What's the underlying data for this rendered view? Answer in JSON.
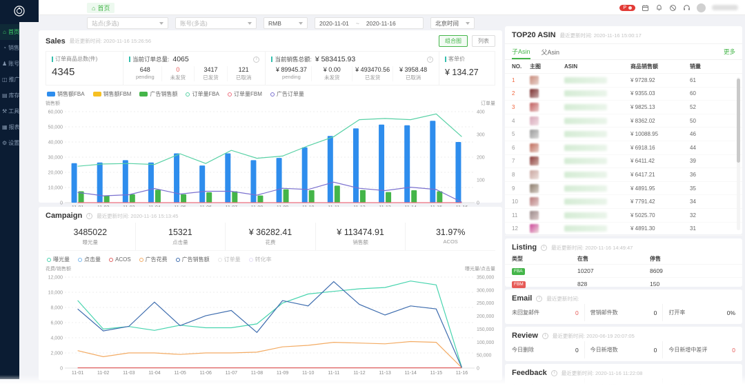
{
  "topbar": {
    "home_tab": "首页",
    "badge": "P"
  },
  "sidebar": {
    "items": [
      {
        "label": "首页",
        "icon": "⌂",
        "name": "home",
        "active": true
      },
      {
        "label": "销售",
        "icon": "◔",
        "name": "sales",
        "active": false
      },
      {
        "label": "账号",
        "icon": "♟",
        "name": "accounts",
        "active": false
      },
      {
        "label": "推广",
        "icon": "◫",
        "name": "advertising",
        "active": false
      },
      {
        "label": "库存",
        "icon": "▤",
        "name": "inventory",
        "active": false
      },
      {
        "label": "工具",
        "icon": "⚒",
        "name": "tools",
        "active": false
      },
      {
        "label": "报表",
        "icon": "▦",
        "name": "reports",
        "active": false
      },
      {
        "label": "设置",
        "icon": "⚙",
        "name": "settings",
        "active": false
      }
    ]
  },
  "filters": {
    "site_placeholder": "站点(多选)",
    "account_placeholder": "账号(多选)",
    "currency_value": "RMB",
    "date_start": "2020-11-01",
    "date_separator": "~",
    "date_end": "2020-11-16",
    "timezone_value": "北京时间"
  },
  "sales": {
    "title": "Sales",
    "updated_label": "最近更新时间:",
    "updated_time": "2020-11-16 15:26:56",
    "buttons": {
      "combo": "组合图",
      "list": "列表"
    },
    "kpi_items_label": "订单商品总数(件)",
    "kpi_items_value": "4345",
    "order_block": {
      "label": "当前订单总量:",
      "value": "4065",
      "cols": [
        {
          "value": "648",
          "label": "pending",
          "red": false
        },
        {
          "value": "0",
          "label": "未发货",
          "red": true
        },
        {
          "value": "3417",
          "label": "已发货",
          "red": false
        },
        {
          "value": "121",
          "label": "已取消",
          "red": false
        }
      ]
    },
    "amount_block": {
      "label": "当前销售总额:",
      "value": "¥ 583415.93",
      "cols": [
        {
          "value": "¥ 89945.37",
          "label": "pending",
          "red": false
        },
        {
          "value": "¥ 0.00",
          "label": "未发货",
          "red": false
        },
        {
          "value": "¥ 493470.56",
          "label": "已发货",
          "red": false
        },
        {
          "value": "¥ 3958.48",
          "label": "已取消",
          "red": false
        }
      ]
    },
    "avg_label": "客单价",
    "avg_value": "¥ 134.27",
    "axis_left_label": "销售额",
    "axis_right_label": "订单量",
    "chart_data": {
      "type": "bar+line",
      "categories": [
        "11-01",
        "11-02",
        "11-03",
        "11-04",
        "11-05",
        "11-06",
        "11-07",
        "11-08",
        "11-09",
        "11-10",
        "11-11",
        "11-12",
        "11-13",
        "11-14",
        "11-15",
        "11-16"
      ],
      "left_axis": {
        "max": 60000,
        "ticks": [
          0,
          10000,
          20000,
          30000,
          40000,
          50000,
          60000
        ]
      },
      "right_axis": {
        "max": 400,
        "ticks": [
          0,
          100,
          200,
          300,
          400
        ]
      },
      "series": [
        {
          "name": "销售额FBA",
          "type": "bar",
          "axis": "left",
          "color": "#2e8ded",
          "values": [
            26000,
            26500,
            28000,
            26500,
            32500,
            24500,
            32500,
            28000,
            29500,
            36500,
            44000,
            49000,
            51500,
            51000,
            54000,
            40000
          ]
        },
        {
          "name": "销售额FBM",
          "type": "bar",
          "axis": "left",
          "color": "#f6c022",
          "values": [
            0,
            0,
            0,
            0,
            0,
            0,
            0,
            0,
            0,
            0,
            0,
            0,
            0,
            0,
            0,
            0
          ]
        },
        {
          "name": "广告销售额",
          "type": "bar",
          "axis": "left",
          "color": "#44b549",
          "values": [
            7500,
            4700,
            5500,
            8500,
            5500,
            6800,
            7500,
            4700,
            8800,
            8200,
            11200,
            8300,
            7000,
            8200,
            7500,
            0
          ]
        },
        {
          "name": "订单量FBA",
          "type": "line",
          "axis": "right",
          "color": "#58d1a5",
          "values": [
            160,
            170,
            172,
            168,
            215,
            172,
            230,
            195,
            205,
            250,
            290,
            365,
            370,
            365,
            390,
            290
          ]
        },
        {
          "name": "订单量FBM",
          "type": "line",
          "axis": "right",
          "color": "#ee6e7e",
          "values": [
            0,
            0,
            0,
            0,
            0,
            0,
            0,
            0,
            0,
            0,
            0,
            0,
            0,
            0,
            0,
            0
          ]
        },
        {
          "name": "广告订单量",
          "type": "line",
          "axis": "right",
          "color": "#7a70cf",
          "values": [
            45,
            30,
            35,
            62,
            38,
            50,
            50,
            33,
            63,
            58,
            90,
            63,
            53,
            68,
            58,
            2
          ]
        }
      ]
    }
  },
  "campaign": {
    "title": "Campaign",
    "updated_label": "最近更新时间:",
    "updated_time": "2020-11-16 15:13:45",
    "kpis": [
      {
        "value": "3485022",
        "label": "曝光量"
      },
      {
        "value": "15321",
        "label": "点击量"
      },
      {
        "value": "¥ 36282.41",
        "label": "花费"
      },
      {
        "value": "¥ 113474.91",
        "label": "销售额"
      },
      {
        "value": "31.97%",
        "label": "ACOS"
      }
    ],
    "axis_left_label": "花费/销售额",
    "axis_right_label": "曝光量/点击量",
    "chart_data": {
      "type": "line",
      "categories": [
        "11-01",
        "11-02",
        "11-03",
        "11-04",
        "11-05",
        "11-06",
        "11-07",
        "11-08",
        "11-09",
        "11-10",
        "11-11",
        "11-12",
        "11-13",
        "11-14",
        "11-15",
        "11-16"
      ],
      "left_axis": {
        "max": 12000,
        "ticks": [
          0,
          2000,
          4000,
          6000,
          8000,
          10000,
          12000
        ]
      },
      "right_axis": {
        "max": 350000,
        "ticks": [
          0,
          50000,
          100000,
          150000,
          200000,
          250000,
          300000,
          350000
        ]
      },
      "series": [
        {
          "name": "曝光量",
          "type": "line",
          "axis": "right",
          "color": "#47d4ae",
          "values": [
            260000,
            150000,
            160000,
            145000,
            165000,
            155000,
            155000,
            170000,
            250000,
            285000,
            295000,
            305000,
            310000,
            335000,
            320000,
            3000
          ]
        },
        {
          "name": "点击量",
          "type": "line",
          "axis": "right",
          "color": "#79b8ef",
          "values": null,
          "dim": false
        },
        {
          "name": "ACOS",
          "type": "line",
          "axis": "left",
          "color": "#e06060",
          "values": [
            32,
            32,
            32,
            32,
            32,
            32,
            32,
            32,
            32,
            32,
            32,
            32,
            32,
            32,
            32,
            32
          ]
        },
        {
          "name": "广告花费",
          "type": "line",
          "axis": "left",
          "color": "#f3ab63",
          "values": [
            2300,
            1500,
            2000,
            2000,
            1800,
            2000,
            2000,
            2100,
            2800,
            3000,
            3400,
            3300,
            3200,
            3500,
            3400,
            50
          ]
        },
        {
          "name": "广告销售额",
          "type": "line",
          "axis": "left",
          "color": "#3d6cae",
          "values": [
            7800,
            4900,
            5500,
            8700,
            5600,
            6900,
            7600,
            4700,
            8900,
            8200,
            11400,
            8400,
            7000,
            8200,
            7800,
            60
          ]
        },
        {
          "name": "订单量",
          "type": "line",
          "axis": "right",
          "color": "#c9c9c9",
          "values": null,
          "dim": true
        },
        {
          "name": "转化率",
          "type": "line",
          "axis": "left",
          "color": "#c4b5ec",
          "values": null,
          "dim": true
        }
      ]
    }
  },
  "top20": {
    "title": "TOP20 ASIN",
    "updated_label": "最近更新时间:",
    "updated_time": "2020-11-16 15:00:17",
    "tabs": [
      {
        "label": "子Asin",
        "active": true
      },
      {
        "label": "父Asin",
        "active": false
      }
    ],
    "more": "更多",
    "columns": [
      "NO.",
      "主图",
      "ASIN",
      "商品销售额",
      "销量"
    ],
    "rows": [
      {
        "no": "1",
        "amount": "¥ 9728.92",
        "qty": "61"
      },
      {
        "no": "2",
        "amount": "¥ 9355.03",
        "qty": "60"
      },
      {
        "no": "3",
        "amount": "¥ 9825.13",
        "qty": "52"
      },
      {
        "no": "4",
        "amount": "¥ 8362.02",
        "qty": "50"
      },
      {
        "no": "5",
        "amount": "¥ 10088.95",
        "qty": "46"
      },
      {
        "no": "6",
        "amount": "¥ 6918.16",
        "qty": "44"
      },
      {
        "no": "7",
        "amount": "¥ 6411.42",
        "qty": "39"
      },
      {
        "no": "8",
        "amount": "¥ 6417.21",
        "qty": "36"
      },
      {
        "no": "9",
        "amount": "¥ 4891.95",
        "qty": "35"
      },
      {
        "no": "10",
        "amount": "¥ 7791.42",
        "qty": "34"
      },
      {
        "no": "11",
        "amount": "¥ 5025.70",
        "qty": "32"
      },
      {
        "no": "12",
        "amount": "¥ 4891.30",
        "qty": "31"
      }
    ]
  },
  "listing": {
    "title": "Listing",
    "updated_label": "最近更新时间:",
    "updated_time": "2020-11-16 14:49:47",
    "columns": [
      "类型",
      "在售",
      "停售"
    ],
    "rows": [
      {
        "type": "FBA",
        "color": "#44b549",
        "onsale": "10207",
        "stopped": "8609"
      },
      {
        "type": "FBM",
        "color": "#e65a57",
        "onsale": "828",
        "stopped": "150"
      }
    ]
  },
  "email": {
    "title": "Email",
    "updated_label": "最近更新时间:",
    "updated_time": "",
    "stats": [
      {
        "label": "未回复邮件",
        "value": "0",
        "red": true
      },
      {
        "label": "营销邮件数",
        "value": "0",
        "red": false
      },
      {
        "label": "打开率",
        "value": "0%",
        "red": false
      }
    ]
  },
  "review": {
    "title": "Review",
    "updated_label": "最近更新时间:",
    "updated_time": "2020-06-19 20:07:05",
    "stats": [
      {
        "label": "今日删除",
        "value": "0",
        "red": false
      },
      {
        "label": "今日新增数",
        "value": "0",
        "red": false
      },
      {
        "label": "今日新增中差评",
        "value": "0",
        "red": true
      }
    ]
  },
  "feedback": {
    "title": "Feedback",
    "updated_label": "最近更新时间:",
    "updated_time": "2020-11-16 11:22:08",
    "stats": [
      {
        "label": "今日删除",
        "value": "0",
        "red": false
      },
      {
        "label": "今日新增数",
        "value": "0",
        "red": false
      },
      {
        "label": "今日新增中差评",
        "value": "0",
        "red": true
      }
    ]
  },
  "colors": {
    "accent_green": "#44b549",
    "alert_red": "#e65a57",
    "sidebar_bg": "#0b1c33",
    "kpi_accent": "#35bfae"
  }
}
